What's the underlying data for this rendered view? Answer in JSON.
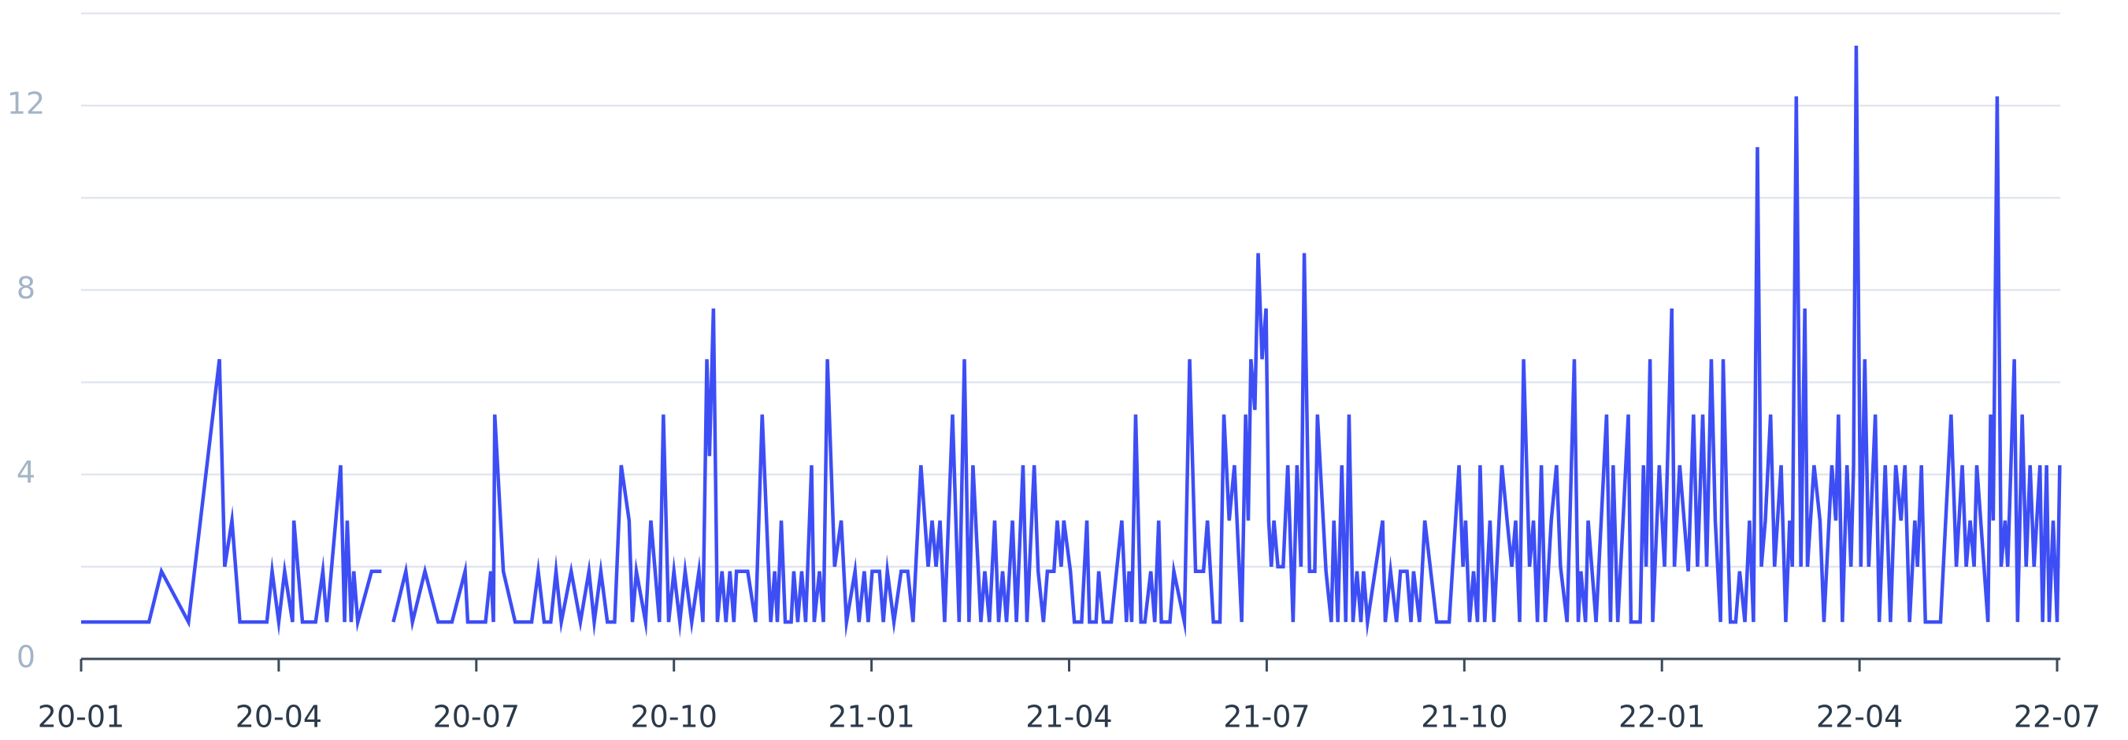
{
  "chart_data": {
    "type": "line",
    "x": [
      0,
      1.03,
      1.22,
      1.63,
      2.1,
      2.18,
      2.29,
      2.41,
      2.82,
      2.9,
      3.0,
      3.09,
      3.21,
      3.23,
      3.36,
      3.56,
      3.67,
      3.73,
      3.94,
      4.0,
      4.04,
      4.1,
      4.14,
      4.2,
      4.41,
      4.56,
      4.6,
      4.74,
      4.93,
      5.03,
      5.22,
      5.42,
      5.63,
      5.83,
      5.87,
      6.14,
      6.22,
      6.26,
      6.28,
      6.41,
      6.59,
      6.84,
      6.94,
      7.03,
      7.13,
      7.21,
      7.29,
      7.44,
      7.58,
      7.71,
      7.79,
      7.89,
      7.99,
      8.1,
      8.2,
      8.32,
      8.37,
      8.43,
      8.57,
      8.65,
      8.78,
      8.84,
      8.92,
      9.0,
      9.09,
      9.17,
      9.27,
      9.38,
      9.44,
      9.5,
      9.54,
      9.6,
      9.66,
      9.73,
      9.79,
      9.85,
      9.91,
      9.95,
      10.12,
      10.24,
      10.34,
      10.47,
      10.53,
      10.57,
      10.63,
      10.69,
      10.78,
      10.82,
      10.88,
      10.94,
      11.0,
      11.09,
      11.13,
      11.21,
      11.27,
      11.33,
      11.44,
      11.54,
      11.62,
      11.75,
      11.81,
      11.89,
      11.95,
      12.01,
      12.12,
      12.18,
      12.24,
      12.34,
      12.45,
      12.55,
      12.63,
      12.75,
      12.86,
      12.92,
      12.98,
      13.04,
      13.11,
      13.23,
      13.33,
      13.41,
      13.48,
      13.54,
      13.66,
      13.72,
      13.79,
      13.87,
      13.93,
      13.99,
      14.05,
      14.14,
      14.2,
      14.3,
      14.36,
      14.47,
      14.53,
      14.61,
      14.67,
      14.77,
      14.82,
      14.88,
      14.92,
      15.02,
      15.08,
      15.19,
      15.27,
      15.31,
      15.41,
      15.45,
      15.52,
      15.64,
      15.8,
      15.87,
      15.91,
      15.95,
      16.01,
      16.09,
      16.15,
      16.24,
      16.3,
      16.36,
      16.4,
      16.53,
      16.59,
      16.75,
      16.83,
      16.92,
      17.04,
      17.1,
      17.19,
      17.29,
      17.35,
      17.43,
      17.51,
      17.62,
      17.68,
      17.72,
      17.76,
      17.82,
      17.87,
      17.93,
      17.99,
      18.03,
      18.07,
      18.11,
      18.17,
      18.25,
      18.32,
      18.4,
      18.46,
      18.52,
      18.57,
      18.65,
      18.73,
      18.77,
      18.9,
      18.98,
      19.02,
      19.08,
      19.14,
      19.2,
      19.25,
      19.31,
      19.37,
      19.43,
      19.47,
      19.53,
      19.76,
      19.8,
      19.88,
      19.97,
      20.03,
      20.13,
      20.19,
      20.23,
      20.32,
      20.4,
      20.58,
      20.77,
      20.92,
      20.98,
      21.02,
      21.08,
      21.14,
      21.2,
      21.24,
      21.31,
      21.39,
      21.45,
      21.57,
      21.65,
      21.72,
      21.78,
      21.84,
      21.9,
      21.99,
      22.05,
      22.11,
      22.17,
      22.23,
      22.32,
      22.4,
      22.46,
      22.56,
      22.67,
      22.73,
      22.77,
      22.84,
      22.88,
      23.0,
      23.16,
      23.22,
      23.26,
      23.33,
      23.41,
      23.49,
      23.53,
      23.67,
      23.72,
      23.76,
      23.82,
      23.86,
      23.96,
      24.04,
      24.15,
      24.19,
      24.27,
      24.4,
      24.48,
      24.54,
      24.62,
      24.68,
      24.75,
      24.81,
      24.89,
      24.93,
      24.99,
      25.04,
      25.12,
      25.18,
      25.26,
      25.33,
      25.39,
      25.45,
      25.51,
      25.57,
      25.65,
      25.71,
      25.81,
      25.88,
      25.94,
      25.98,
      26.04,
      26.11,
      26.17,
      26.21,
      26.31,
      26.4,
      26.46,
      26.58,
      26.64,
      26.68,
      26.74,
      26.81,
      26.87,
      26.91,
      26.95,
      27.02,
      27.08,
      27.14,
      27.24,
      27.3,
      27.39,
      27.47,
      27.55,
      27.63,
      27.69,
      27.76,
      27.84,
      27.88,
      27.94,
      28.0,
      28.23,
      28.39,
      28.47,
      28.56,
      28.62,
      28.68,
      28.74,
      28.78,
      28.95,
      28.99,
      29.03,
      29.09,
      29.15,
      29.21,
      29.25,
      29.35,
      29.4,
      29.47,
      29.53,
      29.59,
      29.65,
      29.74,
      29.78,
      29.84,
      29.88,
      29.94,
      30.0,
      30.04
    ],
    "values": [
      0.8,
      0.8,
      1.9,
      0.8,
      6.5,
      2,
      3,
      0.8,
      0.8,
      1.9,
      0.8,
      1.9,
      0.8,
      3,
      0.8,
      0.8,
      1.9,
      0.8,
      4.2,
      0.8,
      3,
      0.8,
      1.9,
      0.8,
      1.9,
      1.9,
      null,
      0.8,
      1.9,
      0.8,
      1.9,
      0.8,
      0.8,
      1.9,
      0.8,
      0.8,
      1.9,
      0.8,
      5.3,
      1.9,
      0.8,
      0.8,
      1.9,
      0.8,
      0.8,
      1.9,
      0.8,
      1.9,
      0.8,
      1.9,
      0.8,
      1.9,
      0.8,
      0.8,
      4.2,
      3,
      0.8,
      1.9,
      0.8,
      3,
      0.8,
      5.3,
      0.8,
      1.9,
      0.8,
      1.9,
      0.8,
      1.9,
      0.8,
      6.5,
      4.4,
      7.6,
      0.8,
      1.9,
      0.8,
      1.9,
      0.8,
      1.9,
      1.9,
      0.8,
      5.3,
      0.8,
      1.9,
      0.8,
      3,
      0.8,
      0.8,
      1.9,
      0.8,
      1.9,
      0.8,
      4.2,
      0.8,
      1.9,
      0.8,
      6.5,
      2,
      3,
      0.8,
      1.9,
      0.8,
      1.9,
      0.8,
      1.9,
      1.9,
      0.8,
      1.9,
      0.8,
      1.9,
      1.9,
      0.8,
      4.2,
      2,
      3,
      2,
      3,
      0.8,
      5.3,
      0.8,
      6.5,
      0.8,
      4.2,
      0.8,
      1.9,
      0.8,
      3,
      0.8,
      1.9,
      0.8,
      3,
      0.8,
      4.2,
      0.8,
      4.2,
      1.9,
      0.8,
      1.9,
      1.9,
      3,
      2,
      3,
      1.9,
      0.8,
      0.8,
      3,
      0.8,
      0.8,
      1.9,
      0.8,
      0.8,
      3,
      0.8,
      1.9,
      0.8,
      5.3,
      0.8,
      0.8,
      1.9,
      0.8,
      3,
      0.8,
      0.8,
      1.9,
      0.8,
      6.5,
      1.9,
      1.9,
      3,
      0.8,
      0.8,
      5.3,
      3,
      4.2,
      0.8,
      5.3,
      3,
      6.5,
      5.4,
      8.8,
      6.5,
      7.6,
      3,
      2,
      3,
      2,
      2,
      4.2,
      0.8,
      4.2,
      2,
      8.8,
      1.9,
      1.9,
      5.3,
      1.9,
      0.8,
      3,
      0.8,
      4.2,
      0.8,
      5.3,
      0.8,
      1.9,
      0.8,
      1.9,
      0.8,
      3,
      0.8,
      1.9,
      0.8,
      1.9,
      1.9,
      0.8,
      1.9,
      0.8,
      3,
      0.8,
      0.8,
      4.2,
      2,
      3,
      0.8,
      1.9,
      0.8,
      4.2,
      0.8,
      3,
      0.8,
      4.2,
      3,
      2,
      3,
      0.8,
      6.5,
      2,
      3,
      0.8,
      4.2,
      0.8,
      3,
      4.2,
      2,
      0.8,
      6.5,
      0.8,
      1.9,
      0.8,
      3,
      0.8,
      5.3,
      0.8,
      4.2,
      0.8,
      3,
      5.3,
      0.8,
      0.8,
      4.2,
      2,
      6.5,
      0.8,
      4.2,
      2,
      7.6,
      2,
      4.2,
      1.9,
      5.3,
      2,
      5.3,
      2,
      6.5,
      3,
      0.8,
      6.5,
      3,
      0.8,
      0.8,
      1.9,
      0.8,
      3,
      0.8,
      11.1,
      2,
      3,
      5.3,
      2,
      4.2,
      0.8,
      3,
      2,
      12.2,
      2,
      7.6,
      2,
      4.2,
      3,
      0.8,
      4.2,
      3,
      5.3,
      0.8,
      4.2,
      2,
      4.2,
      13.3,
      2,
      6.5,
      2,
      5.3,
      0.8,
      4.2,
      0.8,
      4.2,
      3,
      4.2,
      0.8,
      3,
      2,
      4.2,
      0.8,
      0.8,
      5.3,
      2,
      4.2,
      2,
      3,
      2,
      4.2,
      0.8,
      5.3,
      3,
      12.2,
      2,
      3,
      2,
      6.5,
      0.8,
      5.3,
      2,
      4.2,
      2,
      4.2,
      0.8,
      4.2,
      0.8,
      3,
      0.8,
      4.2
    ],
    "color": "#3d4ef5",
    "xlim": [
      0,
      30.05
    ],
    "xticks": [
      {
        "value": 0,
        "label": "20-01"
      },
      {
        "value": 3,
        "label": "20-04"
      },
      {
        "value": 6,
        "label": "20-07"
      },
      {
        "value": 9,
        "label": "20-10"
      },
      {
        "value": 12,
        "label": "21-01"
      },
      {
        "value": 15,
        "label": "21-04"
      },
      {
        "value": 18,
        "label": "21-07"
      },
      {
        "value": 21,
        "label": "21-10"
      },
      {
        "value": 24,
        "label": "22-01"
      },
      {
        "value": 27,
        "label": "22-04"
      },
      {
        "value": 30,
        "label": "22-07"
      }
    ],
    "ylim": [
      0,
      14
    ],
    "yticks": [
      0,
      4,
      8,
      12
    ],
    "minor_yticks": [
      2,
      6,
      10,
      14
    ],
    "grid": true
  }
}
